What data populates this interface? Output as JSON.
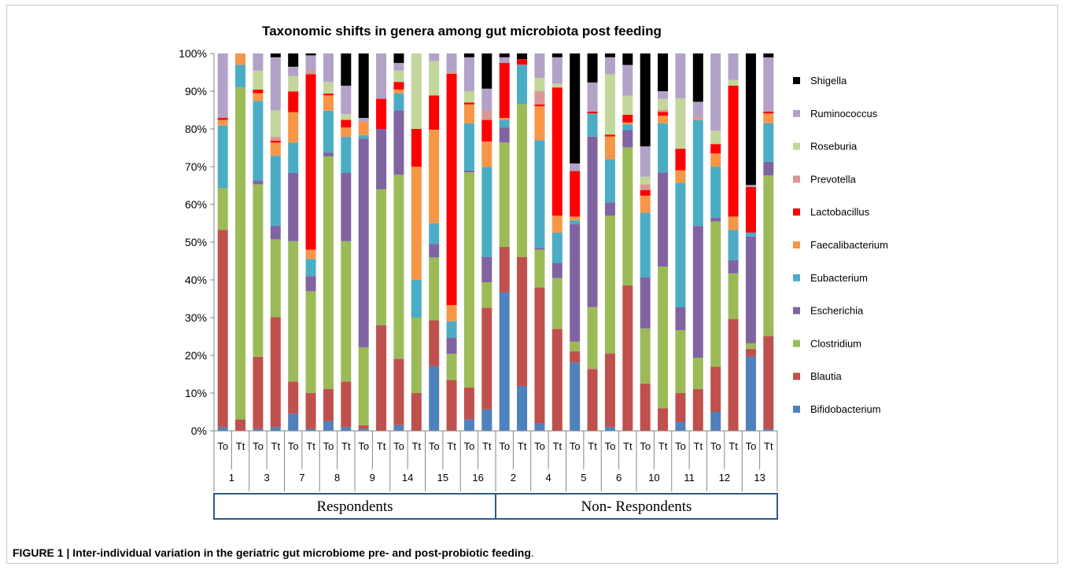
{
  "caption": {
    "label": "FIGURE 1 | Inter-individual variation in the geriatric gut microbiome pre- and post-probiotic feeding",
    "suffix": "."
  },
  "chart_data": {
    "type": "bar",
    "stacking": "percent",
    "title": "Taxonomic shifts in genera among gut microbiota post feeding",
    "xlabel": "",
    "ylabel": "",
    "ylim": [
      0,
      100
    ],
    "y_ticks": [
      "0%",
      "10%",
      "20%",
      "30%",
      "40%",
      "50%",
      "60%",
      "70%",
      "80%",
      "90%",
      "100%"
    ],
    "grid": false,
    "legend_position": "right",
    "groups": [
      {
        "label": "Respondents",
        "subjects": [
          "1",
          "3",
          "7",
          "8",
          "9",
          "14",
          "15",
          "16"
        ]
      },
      {
        "label": "Non- Respondents",
        "subjects": [
          "2",
          "4",
          "5",
          "6",
          "10",
          "11",
          "12",
          "13"
        ]
      }
    ],
    "timepoints": [
      "To",
      "Tt"
    ],
    "categories": [
      "1-To",
      "1-Tt",
      "3-To",
      "3-Tt",
      "7-To",
      "7-Tt",
      "8-To",
      "8-Tt",
      "9-To",
      "9-Tt",
      "14-To",
      "14-Tt",
      "15-To",
      "15-Tt",
      "16-To",
      "16-Tt",
      "2-To",
      "2-Tt",
      "4-To",
      "4-Tt",
      "5-To",
      "5-Tt",
      "6-To",
      "6-Tt",
      "10-To",
      "10-Tt",
      "11-To",
      "11-Tt",
      "12-To",
      "12-Tt",
      "13-To",
      "13-Tt"
    ],
    "series": [
      {
        "name": "Bifidobacterium",
        "color": "#4f81bd",
        "values": [
          1,
          0,
          0.5,
          1,
          4.5,
          0.5,
          2.5,
          1,
          0.5,
          0,
          1.5,
          0,
          17,
          0,
          3,
          5.5,
          36.5,
          12,
          2,
          0,
          18,
          0,
          1,
          0,
          0,
          0,
          2.5,
          0,
          5,
          0,
          19.5,
          0.5
        ]
      },
      {
        "name": "Blautia",
        "color": "#c0504d",
        "values": [
          52,
          3,
          19,
          29,
          8.5,
          9.5,
          8.5,
          12,
          1,
          28,
          17.5,
          10,
          12,
          12.5,
          8.5,
          26,
          12,
          34.5,
          36,
          27,
          3,
          16,
          19.5,
          38,
          12.5,
          6,
          8,
          16,
          12,
          29.5,
          2,
          24
        ]
      },
      {
        "name": "Clostridium",
        "color": "#9bbb59",
        "values": [
          11,
          88,
          45.5,
          20.5,
          37,
          27,
          61,
          37,
          20.5,
          36,
          48.5,
          20,
          16.5,
          6.5,
          57,
          6.5,
          27.5,
          41,
          10,
          13.5,
          2.5,
          16,
          36.5,
          36,
          14.5,
          37.5,
          17.5,
          12,
          38.5,
          12,
          1.5,
          41.5
        ]
      },
      {
        "name": "Escherichia",
        "color": "#8064a2",
        "values": [
          0,
          0,
          1,
          3.5,
          18,
          4,
          1,
          18,
          55,
          16,
          17,
          0,
          3.5,
          4,
          0.5,
          6.5,
          4,
          0,
          0.5,
          4,
          31,
          44,
          3.5,
          4.5,
          13.5,
          25,
          6.5,
          50.5,
          1,
          3.5,
          28,
          3.5
        ]
      },
      {
        "name": "Eubacterium",
        "color": "#4bacc6",
        "values": [
          16.5,
          6,
          21,
          18.5,
          8,
          4.5,
          11,
          9.5,
          1,
          0,
          4.5,
          10,
          5.5,
          4,
          12.5,
          23,
          2,
          10.5,
          28.5,
          8,
          1,
          6,
          11.5,
          1.5,
          17,
          13,
          34.5,
          40.5,
          13.5,
          8,
          1,
          10
        ]
      },
      {
        "name": "Faecalibacterium",
        "color": "#f79646",
        "values": [
          1.5,
          3,
          2,
          3.5,
          8,
          2.5,
          4,
          2.5,
          3.5,
          0,
          1,
          30,
          24.5,
          4,
          5,
          6.5,
          0.5,
          0,
          9,
          4.5,
          1,
          0,
          6,
          0.5,
          4.5,
          2,
          3.5,
          0.5,
          3.5,
          3.5,
          0,
          2.5
        ]
      },
      {
        "name": "Lactobacillus",
        "color": "#ff0000",
        "values": [
          0.5,
          0,
          1,
          0.5,
          5.5,
          46.5,
          0.5,
          2,
          0,
          8,
          2,
          10,
          9,
          57,
          0.5,
          5.5,
          14.5,
          1.5,
          0.5,
          34,
          12,
          0.5,
          0.5,
          2,
          1.5,
          1,
          6,
          0,
          2.5,
          34.5,
          12,
          0.5
        ]
      },
      {
        "name": "Prevotella",
        "color": "#d99694",
        "values": [
          0,
          0,
          0,
          1,
          0,
          1,
          0,
          0,
          0,
          0,
          0,
          0,
          0,
          0.5,
          0,
          2.5,
          0,
          0,
          3.5,
          0,
          0,
          0,
          0,
          0,
          1.5,
          0.5,
          0,
          0.5,
          0,
          0,
          0,
          0
        ]
      },
      {
        "name": "Roseburia",
        "color": "#c3d69b",
        "values": [
          0,
          0,
          5,
          7,
          4,
          0,
          3,
          1.5,
          0,
          0,
          3,
          20,
          9,
          0,
          3,
          0,
          0,
          0,
          3.5,
          1,
          0,
          0,
          16,
          5,
          2,
          3,
          14,
          0,
          3.5,
          1.5,
          0,
          0
        ]
      },
      {
        "name": "Ruminococcus",
        "color": "#b3a2c7",
        "values": [
          17,
          0,
          4.5,
          14,
          2.5,
          4,
          7.5,
          7.5,
          1,
          12,
          2,
          0,
          2,
          4.5,
          9,
          5.5,
          1.5,
          0,
          6.5,
          7,
          2,
          7.5,
          4.5,
          8,
          8,
          2,
          12.5,
          6,
          20.5,
          7,
          0.5,
          14
        ]
      },
      {
        "name": "Shigella",
        "color": "#000000",
        "values": [
          0,
          0,
          0,
          1,
          3.5,
          0.5,
          0,
          8.5,
          17,
          0,
          2.5,
          0,
          0,
          0,
          1,
          9,
          1,
          1.5,
          0,
          1,
          29,
          7.5,
          1,
          3,
          24.5,
          10,
          0,
          18.5,
          0,
          0,
          34.5,
          1
        ]
      }
    ],
    "legend": [
      "Shigella",
      "Ruminococcus",
      "Roseburia",
      "Prevotella",
      "Lactobacillus",
      "Faecalibacterium",
      "Eubacterium",
      "Escherichia",
      "Clostridium",
      "Blautia",
      "Bifidobacterium"
    ]
  }
}
